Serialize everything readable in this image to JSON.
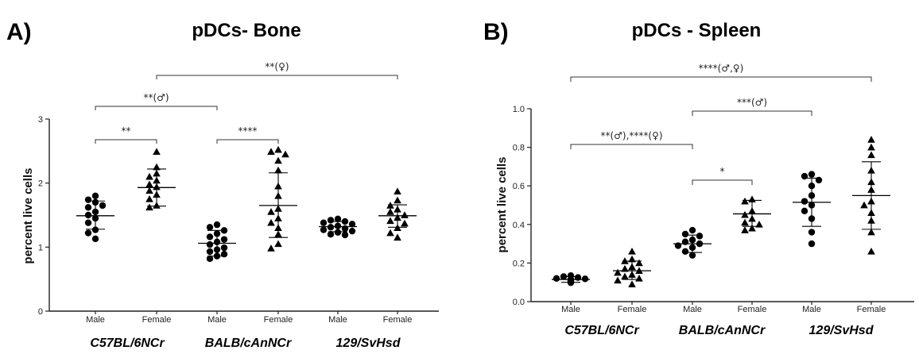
{
  "chart_data": [
    {
      "type": "scatter",
      "panel_label": "A)",
      "title": "pDCs- Bone",
      "ylabel": "percent live cells",
      "ylim": [
        0,
        3
      ],
      "yticks": [
        "0",
        "1",
        "2",
        "3"
      ],
      "groups": [
        {
          "sex": "Male",
          "marker": "circle",
          "mean": 1.49,
          "sd_low": 1.28,
          "sd_high": 1.72,
          "values": [
            1.8,
            1.74,
            1.7,
            1.65,
            1.62,
            1.55,
            1.5,
            1.45,
            1.38,
            1.27,
            1.22,
            1.13
          ]
        },
        {
          "sex": "Female",
          "marker": "triangle",
          "mean": 1.93,
          "sd_low": 1.64,
          "sd_high": 2.22,
          "values": [
            2.49,
            2.25,
            2.15,
            2.1,
            2.04,
            1.98,
            1.94,
            1.88,
            1.82,
            1.75,
            1.65,
            1.62
          ]
        },
        {
          "sex": "Male",
          "marker": "circle",
          "mean": 1.06,
          "sd_low": 0.86,
          "sd_high": 1.26,
          "values": [
            1.35,
            1.31,
            1.26,
            1.21,
            1.16,
            1.12,
            1.08,
            1.04,
            0.99,
            0.96,
            0.93,
            0.89,
            0.86,
            0.82
          ]
        },
        {
          "sex": "Female",
          "marker": "triangle",
          "mean": 1.65,
          "sd_low": 1.15,
          "sd_high": 2.16,
          "values": [
            2.52,
            2.49,
            2.45,
            2.35,
            2.2,
            1.95,
            1.8,
            1.6,
            1.55,
            1.45,
            1.38,
            1.3,
            1.2,
            1.05,
            0.98
          ]
        },
        {
          "sex": "Male",
          "marker": "circle",
          "mean": 1.32,
          "sd_low": 1.24,
          "sd_high": 1.4,
          "values": [
            1.44,
            1.42,
            1.4,
            1.38,
            1.36,
            1.33,
            1.31,
            1.29,
            1.27,
            1.25,
            1.23,
            1.2,
            1.19
          ]
        },
        {
          "sex": "Female",
          "marker": "triangle",
          "mean": 1.49,
          "sd_low": 1.31,
          "sd_high": 1.66,
          "values": [
            1.87,
            1.73,
            1.65,
            1.59,
            1.55,
            1.5,
            1.46,
            1.41,
            1.37,
            1.3,
            1.22,
            1.15
          ]
        }
      ],
      "strains": [
        "C57BL/6NCr",
        "BALB/cAnNCr",
        "129/SvHsd"
      ],
      "significance": [
        {
          "label": "**",
          "from_group": 0,
          "to_group": 1
        },
        {
          "label": "****",
          "from_group": 2,
          "to_group": 3
        },
        {
          "label": "**(♂)",
          "from_group": 0,
          "to_group": 2
        },
        {
          "label": "**(♀)",
          "from_group": 1,
          "to_group": 5
        }
      ]
    },
    {
      "type": "scatter",
      "panel_label": "B)",
      "title": "pDCs - Spleen",
      "ylabel": "percent live cells",
      "ylim": [
        0,
        1.0
      ],
      "yticks": [
        "0.0",
        "0.2",
        "0.4",
        "0.6",
        "0.8",
        "1.0"
      ],
      "groups": [
        {
          "sex": "Male",
          "marker": "circle",
          "mean": 0.115,
          "sd_low": 0.1,
          "sd_high": 0.13,
          "values": [
            0.135,
            0.13,
            0.125,
            0.12,
            0.118,
            0.115,
            0.112,
            0.11,
            0.105,
            0.1,
            0.098
          ]
        },
        {
          "sex": "Female",
          "marker": "triangle",
          "mean": 0.16,
          "sd_low": 0.115,
          "sd_high": 0.21,
          "values": [
            0.26,
            0.22,
            0.21,
            0.2,
            0.18,
            0.17,
            0.16,
            0.15,
            0.14,
            0.13,
            0.12,
            0.11,
            0.09
          ]
        },
        {
          "sex": "Male",
          "marker": "circle",
          "mean": 0.3,
          "sd_low": 0.255,
          "sd_high": 0.345,
          "values": [
            0.37,
            0.35,
            0.34,
            0.32,
            0.31,
            0.3,
            0.29,
            0.28,
            0.26,
            0.24
          ]
        },
        {
          "sex": "Female",
          "marker": "triangle",
          "mean": 0.455,
          "sd_low": 0.39,
          "sd_high": 0.525,
          "values": [
            0.53,
            0.52,
            0.47,
            0.45,
            0.43,
            0.41,
            0.4,
            0.38,
            0.37
          ]
        },
        {
          "sex": "Male",
          "marker": "circle",
          "mean": 0.515,
          "sd_low": 0.39,
          "sd_high": 0.64,
          "values": [
            0.66,
            0.65,
            0.63,
            0.6,
            0.55,
            0.52,
            0.5,
            0.47,
            0.43,
            0.36,
            0.3
          ]
        },
        {
          "sex": "Female",
          "marker": "triangle",
          "mean": 0.55,
          "sd_low": 0.375,
          "sd_high": 0.725,
          "values": [
            0.84,
            0.8,
            0.76,
            0.68,
            0.62,
            0.58,
            0.52,
            0.5,
            0.46,
            0.42,
            0.36,
            0.26
          ]
        }
      ],
      "strains": [
        "C57BL/6NCr",
        "BALB/cAnNCr",
        "129/SvHsd"
      ],
      "significance": [
        {
          "label": "*",
          "from_group": 2,
          "to_group": 3
        },
        {
          "label": "**(♂),****(♀)",
          "from_group": 0,
          "to_group": 2
        },
        {
          "label": "***(♂)",
          "from_group": 2,
          "to_group": 4
        },
        {
          "label": "****(♂,♀)",
          "from_group": 0,
          "to_group": 5
        }
      ]
    }
  ]
}
